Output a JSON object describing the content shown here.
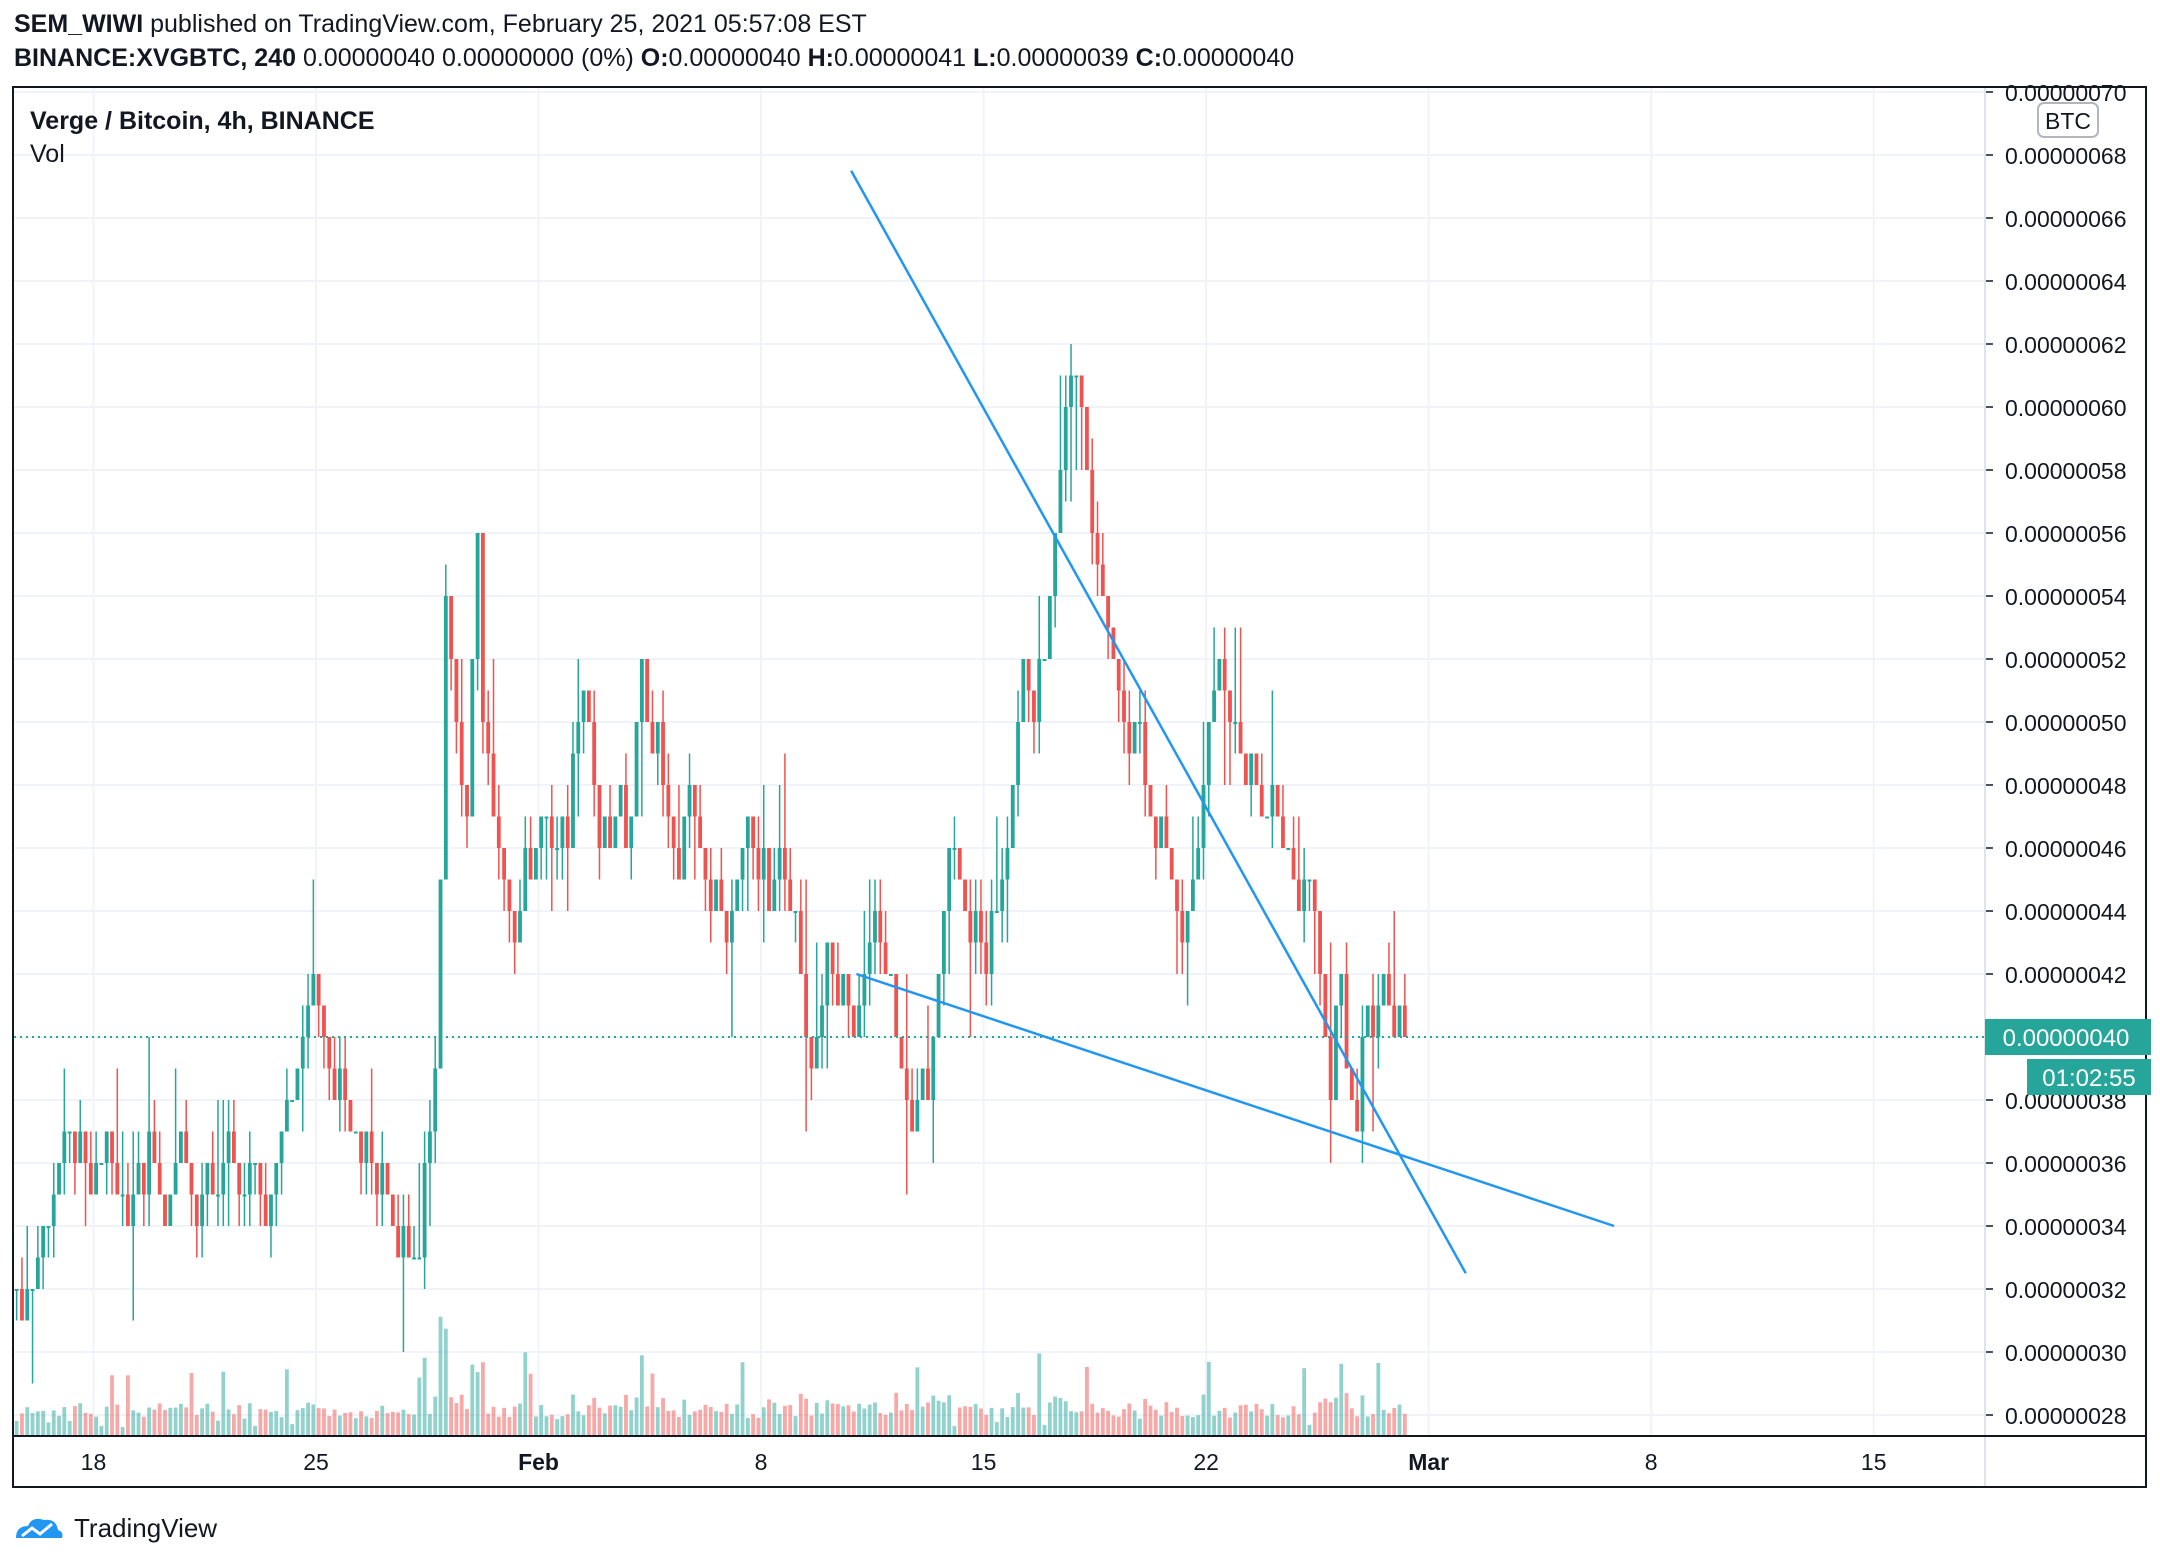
{
  "header": {
    "publisher": "SEM_WIWI",
    "published_text": "published on TradingView.com, February 25, 2021 05:57:08 EST",
    "symbol": "BINANCE:XVGBTC, 240",
    "summary": "0.00000040 0.00000000 (0%)",
    "o_label": "O:",
    "o_value": "0.00000040",
    "h_label": "H:",
    "h_value": "0.00000041",
    "l_label": "L:",
    "l_value": "0.00000039",
    "c_label": "C:",
    "c_value": "0.00000040"
  },
  "legend": {
    "title": "Verge / Bitcoin, 4h, BINANCE",
    "vol": "Vol"
  },
  "currency": "BTC",
  "price_tag": "0.00000040",
  "countdown": "01:02:55",
  "footer": {
    "brand": "TradingView"
  },
  "colors": {
    "up": "#26a69a",
    "down": "#ef5350",
    "trend": "#2196f3",
    "grid": "#f0f3fa",
    "axis_bg": "#26a69a"
  },
  "chart_data": {
    "type": "candlestick",
    "title": "Verge / Bitcoin, 4h, BINANCE",
    "y_unit": "BTC",
    "ylim": [
      2.7e-07,
      7e-07
    ],
    "y_ticks": [
      "0.00000070",
      "0.00000068",
      "0.00000066",
      "0.00000064",
      "0.00000062",
      "0.00000060",
      "0.00000058",
      "0.00000056",
      "0.00000054",
      "0.00000052",
      "0.00000050",
      "0.00000048",
      "0.00000046",
      "0.00000044",
      "0.00000042",
      "0.00000040",
      "0.00000038",
      "0.00000036",
      "0.00000034",
      "0.00000032",
      "0.00000030",
      "0.00000028"
    ],
    "x_tick_labels": [
      "18",
      "25",
      "Feb",
      "8",
      "15",
      "22",
      "Mar",
      "8",
      "15"
    ],
    "x_tick_dates": [
      "2021-01-18",
      "2021-01-25",
      "2021-02-01",
      "2021-02-08",
      "2021-02-15",
      "2021-02-22",
      "2021-03-01",
      "2021-03-08",
      "2021-03-15"
    ],
    "x_range_dates": [
      "2021-01-15T12:00",
      "2021-03-18T12:00"
    ],
    "series_start": "2021-01-15T12:00",
    "interval_hours": 4,
    "closes": [
      3.2e-07,
      3.1e-07,
      3.2e-07,
      3.2e-07,
      3.3e-07,
      3.4e-07,
      3.4e-07,
      3.5e-07,
      3.6e-07,
      3.7e-07,
      3.7e-07,
      3.6e-07,
      3.7e-07,
      3.6e-07,
      3.5e-07,
      3.6e-07,
      3.6e-07,
      3.7e-07,
      3.6e-07,
      3.5e-07,
      3.5e-07,
      3.4e-07,
      3.5e-07,
      3.6e-07,
      3.5e-07,
      3.7e-07,
      3.6e-07,
      3.5e-07,
      3.4e-07,
      3.5e-07,
      3.6e-07,
      3.7e-07,
      3.6e-07,
      3.5e-07,
      3.4e-07,
      3.5e-07,
      3.6e-07,
      3.5e-07,
      3.5e-07,
      3.6e-07,
      3.7e-07,
      3.6e-07,
      3.5e-07,
      3.5e-07,
      3.6e-07,
      3.6e-07,
      3.5e-07,
      3.4e-07,
      3.5e-07,
      3.6e-07,
      3.7e-07,
      3.8e-07,
      3.8e-07,
      3.9e-07,
      4e-07,
      4.1e-07,
      4.2e-07,
      4.1e-07,
      4e-07,
      3.9e-07,
      3.8e-07,
      3.9e-07,
      3.8e-07,
      3.7e-07,
      3.7e-07,
      3.6e-07,
      3.7e-07,
      3.6e-07,
      3.5e-07,
      3.6e-07,
      3.5e-07,
      3.4e-07,
      3.3e-07,
      3.4e-07,
      3.3e-07,
      3.3e-07,
      3.3e-07,
      3.6e-07,
      3.7e-07,
      3.9e-07,
      4.5e-07,
      5.4e-07,
      5.2e-07,
      5e-07,
      4.8e-07,
      4.7e-07,
      5.2e-07,
      5.6e-07,
      5e-07,
      4.9e-07,
      4.7e-07,
      4.6e-07,
      4.5e-07,
      4.4e-07,
      4.3e-07,
      4.4e-07,
      4.6e-07,
      4.5e-07,
      4.6e-07,
      4.7e-07,
      4.7e-07,
      4.6e-07,
      4.6e-07,
      4.7e-07,
      4.6e-07,
      4.9e-07,
      5e-07,
      5.1e-07,
      5e-07,
      4.8e-07,
      4.6e-07,
      4.7e-07,
      4.6e-07,
      4.7e-07,
      4.8e-07,
      4.6e-07,
      4.7e-07,
      5e-07,
      5.2e-07,
      5e-07,
      4.9e-07,
      5e-07,
      4.8e-07,
      4.7e-07,
      4.6e-07,
      4.5e-07,
      4.7e-07,
      4.8e-07,
      4.7e-07,
      4.6e-07,
      4.5e-07,
      4.4e-07,
      4.5e-07,
      4.4e-07,
      4.3e-07,
      4.4e-07,
      4.5e-07,
      4.6e-07,
      4.7e-07,
      4.6e-07,
      4.5e-07,
      4.6e-07,
      4.4e-07,
      4.5e-07,
      4.6e-07,
      4.5e-07,
      4.4e-07,
      4.4e-07,
      4.2e-07,
      4e-07,
      3.9e-07,
      4e-07,
      4.1e-07,
      4.3e-07,
      4.2e-07,
      4.1e-07,
      4.2e-07,
      4.1e-07,
      4e-07,
      4.1e-07,
      4.2e-07,
      4.3e-07,
      4.4e-07,
      4.3e-07,
      4.2e-07,
      4.2e-07,
      4e-07,
      3.9e-07,
      3.8e-07,
      3.7e-07,
      3.8e-07,
      3.9e-07,
      3.8e-07,
      4e-07,
      4.2e-07,
      4.4e-07,
      4.6e-07,
      4.6e-07,
      4.5e-07,
      4.4e-07,
      4.3e-07,
      4.4e-07,
      4.3e-07,
      4.2e-07,
      4.4e-07,
      4.4e-07,
      4.5e-07,
      4.6e-07,
      4.8e-07,
      5e-07,
      5.2e-07,
      5.1e-07,
      5e-07,
      5.2e-07,
      5.2e-07,
      5.4e-07,
      5.6e-07,
      5.8e-07,
      6e-07,
      6.1e-07,
      6.1e-07,
      6e-07,
      5.8e-07,
      5.6e-07,
      5.5e-07,
      5.4e-07,
      5.3e-07,
      5.2e-07,
      5.1e-07,
      5e-07,
      4.9e-07,
      5e-07,
      5e-07,
      4.8e-07,
      4.7e-07,
      4.6e-07,
      4.7e-07,
      4.6e-07,
      4.5e-07,
      4.4e-07,
      4.3e-07,
      4.4e-07,
      4.5e-07,
      4.6e-07,
      4.8e-07,
      5e-07,
      5.1e-07,
      5.2e-07,
      5.1e-07,
      5e-07,
      5e-07,
      4.9e-07,
      4.8e-07,
      4.9e-07,
      4.8e-07,
      4.7e-07,
      4.7e-07,
      4.8e-07,
      4.7e-07,
      4.6e-07,
      4.6e-07,
      4.5e-07,
      4.4e-07,
      4.5e-07,
      4.5e-07,
      4.4e-07,
      4.2e-07,
      4e-07,
      3.8e-07,
      4.1e-07,
      4.2e-07,
      3.9e-07,
      3.8e-07,
      3.7e-07,
      4e-07,
      4.1e-07,
      4e-07,
      4.1e-07,
      4.2e-07,
      4.1e-07,
      4e-07,
      4.1e-07,
      4e-07
    ],
    "trendlines": [
      {
        "from": {
          "x": "2021-02-10T20:00",
          "y": 6.75e-07
        },
        "to": {
          "x": "2021-03-02T04:00",
          "y": 3.25e-07
        }
      },
      {
        "from": {
          "x": "2021-02-11T00:00",
          "y": 4.2e-07
        },
        "to": {
          "x": "2021-03-06T20:00",
          "y": 3.4e-07
        }
      }
    ],
    "last_price": 4e-07
  }
}
